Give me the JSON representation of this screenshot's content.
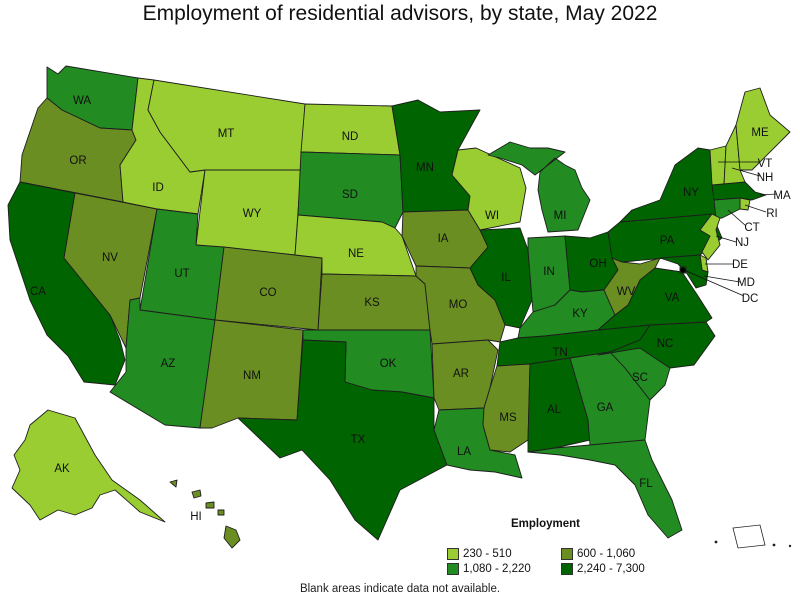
{
  "title": "Employment of residential advisors, by state, May 2022",
  "legend": {
    "title": "Employment",
    "items": [
      {
        "label": "230 - 510",
        "color": "#9acd32"
      },
      {
        "label": "600 - 1,060",
        "color": "#6b8e23"
      },
      {
        "label": "1,080 - 2,220",
        "color": "#228b22"
      },
      {
        "label": "2,240 - 7,300",
        "color": "#006400"
      }
    ]
  },
  "note": "Blank areas indicate data not available.",
  "states": [
    {
      "abbr": "WA",
      "class": "1,080 - 2,220"
    },
    {
      "abbr": "OR",
      "class": "600 - 1,060"
    },
    {
      "abbr": "CA",
      "class": "2,240 - 7,300"
    },
    {
      "abbr": "NV",
      "class": "600 - 1,060"
    },
    {
      "abbr": "ID",
      "class": "230 - 510"
    },
    {
      "abbr": "MT",
      "class": "230 - 510"
    },
    {
      "abbr": "WY",
      "class": "230 - 510"
    },
    {
      "abbr": "UT",
      "class": "1,080 - 2,220"
    },
    {
      "abbr": "AZ",
      "class": "1,080 - 2,220"
    },
    {
      "abbr": "CO",
      "class": "600 - 1,060"
    },
    {
      "abbr": "NM",
      "class": "600 - 1,060"
    },
    {
      "abbr": "ND",
      "class": "230 - 510"
    },
    {
      "abbr": "SD",
      "class": "1,080 - 2,220"
    },
    {
      "abbr": "NE",
      "class": "230 - 510"
    },
    {
      "abbr": "KS",
      "class": "600 - 1,060"
    },
    {
      "abbr": "OK",
      "class": "1,080 - 2,220"
    },
    {
      "abbr": "TX",
      "class": "2,240 - 7,300"
    },
    {
      "abbr": "MN",
      "class": "2,240 - 7,300"
    },
    {
      "abbr": "IA",
      "class": "600 - 1,060"
    },
    {
      "abbr": "MO",
      "class": "600 - 1,060"
    },
    {
      "abbr": "AR",
      "class": "600 - 1,060"
    },
    {
      "abbr": "LA",
      "class": "1,080 - 2,220"
    },
    {
      "abbr": "WI",
      "class": "230 - 510"
    },
    {
      "abbr": "IL",
      "class": "2,240 - 7,300"
    },
    {
      "abbr": "MI",
      "class": "1,080 - 2,220"
    },
    {
      "abbr": "IN",
      "class": "1,080 - 2,220"
    },
    {
      "abbr": "OH",
      "class": "2,240 - 7,300"
    },
    {
      "abbr": "KY",
      "class": "1,080 - 2,220"
    },
    {
      "abbr": "TN",
      "class": "2,240 - 7,300"
    },
    {
      "abbr": "MS",
      "class": "600 - 1,060"
    },
    {
      "abbr": "AL",
      "class": "2,240 - 7,300"
    },
    {
      "abbr": "GA",
      "class": "1,080 - 2,220"
    },
    {
      "abbr": "FL",
      "class": "1,080 - 2,220"
    },
    {
      "abbr": "SC",
      "class": "1,080 - 2,220"
    },
    {
      "abbr": "NC",
      "class": "2,240 - 7,300"
    },
    {
      "abbr": "VA",
      "class": "2,240 - 7,300"
    },
    {
      "abbr": "WV",
      "class": "600 - 1,060"
    },
    {
      "abbr": "PA",
      "class": "2,240 - 7,300"
    },
    {
      "abbr": "NY",
      "class": "2,240 - 7,300"
    },
    {
      "abbr": "VT",
      "class": "230 - 510"
    },
    {
      "abbr": "NH",
      "class": "230 - 510"
    },
    {
      "abbr": "ME",
      "class": "230 - 510"
    },
    {
      "abbr": "MA",
      "class": "2,240 - 7,300"
    },
    {
      "abbr": "RI",
      "class": "230 - 510"
    },
    {
      "abbr": "CT",
      "class": "1,080 - 2,220"
    },
    {
      "abbr": "NJ",
      "class": "230 - 510"
    },
    {
      "abbr": "DE",
      "class": "230 - 510"
    },
    {
      "abbr": "MD",
      "class": "2,240 - 7,300"
    },
    {
      "abbr": "DC",
      "class": "2,240 - 7,300"
    },
    {
      "abbr": "AK",
      "class": "230 - 510"
    },
    {
      "abbr": "HI",
      "class": "600 - 1,060"
    }
  ]
}
